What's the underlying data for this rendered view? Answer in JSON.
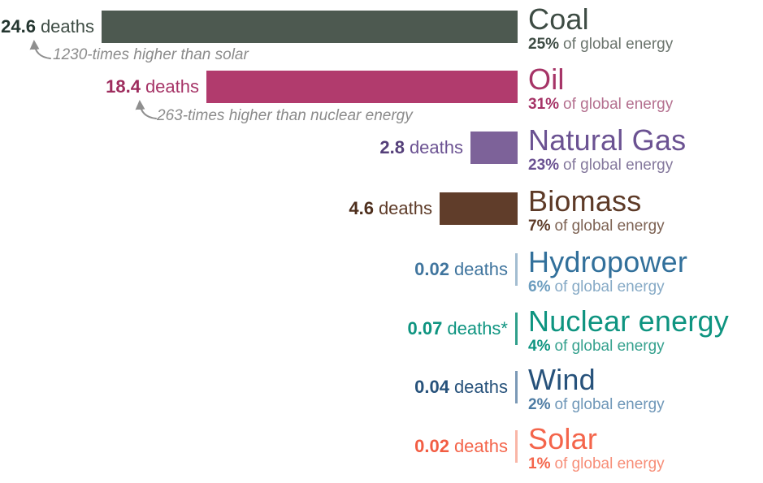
{
  "chart_data": {
    "type": "bar",
    "orientation": "horizontal",
    "title": "",
    "value_unit": "deaths",
    "xlim": [
      0,
      24.6
    ],
    "grid": false,
    "legend": "none",
    "categories": [
      "Coal",
      "Oil",
      "Natural Gas",
      "Biomass",
      "Hydropower",
      "Nuclear energy",
      "Wind",
      "Solar"
    ],
    "values": [
      24.6,
      18.4,
      2.8,
      4.6,
      0.02,
      0.07,
      0.04,
      0.02
    ],
    "shares_of_global_energy": [
      "25%",
      "31%",
      "23%",
      "7%",
      "6%",
      "4%",
      "2%",
      "1%"
    ],
    "series": [
      {
        "label": "Coal",
        "deaths": 24.6,
        "deaths_display": "24.6",
        "deaths_word": "deaths",
        "share": "25%",
        "share_text": "of global energy",
        "annotation": "1230-times higher than solar",
        "colors": {
          "bar": "#4d5950",
          "value": "#243630",
          "word": "#3e4c44",
          "name": "#3e4c44",
          "share_num": "#3e4c44",
          "share_rest": "#6b746d"
        }
      },
      {
        "label": "Oil",
        "deaths": 18.4,
        "deaths_display": "18.4",
        "deaths_word": "deaths",
        "share": "31%",
        "share_text": "of global energy",
        "annotation": "263-times higher than nuclear energy",
        "colors": {
          "bar": "#b13b6d",
          "value": "#9e2d5e",
          "word": "#a63467",
          "name": "#a63467",
          "share_num": "#a63467",
          "share_rest": "#b4708f"
        }
      },
      {
        "label": "Natural Gas",
        "deaths": 2.8,
        "deaths_display": "2.8",
        "deaths_word": "deaths",
        "share": "23%",
        "share_text": "of global energy",
        "annotation": "",
        "colors": {
          "bar": "#7d6299",
          "value": "#55407a",
          "word": "#6b5292",
          "name": "#6b5292",
          "share_num": "#6b5292",
          "share_rest": "#84789c"
        }
      },
      {
        "label": "Biomass",
        "deaths": 4.6,
        "deaths_display": "4.6",
        "deaths_word": "deaths",
        "share": "7%",
        "share_text": "of global energy",
        "annotation": "",
        "colors": {
          "bar": "#603d2a",
          "value": "#4e2f1d",
          "word": "#5d3a27",
          "name": "#5d3a27",
          "share_num": "#5d3a27",
          "share_rest": "#7d6253"
        }
      },
      {
        "label": "Hydropower",
        "deaths": 0.02,
        "deaths_display": "0.02",
        "deaths_word": "deaths",
        "share": "6%",
        "share_text": "of global energy",
        "annotation": "",
        "colors": {
          "bar": "#a3bdd1",
          "value": "#40759e",
          "word": "#40759e",
          "name": "#32709b",
          "share_num": "#6b9cbe",
          "share_rest": "#86aac6"
        }
      },
      {
        "label": "Nuclear energy",
        "deaths": 0.07,
        "deaths_display": "0.07",
        "deaths_word": "deaths*",
        "share": "4%",
        "share_text": "of global energy",
        "annotation": "",
        "colors": {
          "bar": "#2f9f8b",
          "value": "#0e9480",
          "word": "#0e9480",
          "name": "#0e9480",
          "share_num": "#0e9480",
          "share_rest": "#35a18e"
        }
      },
      {
        "label": "Wind",
        "deaths": 0.04,
        "deaths_display": "0.04",
        "deaths_word": "deaths",
        "share": "2%",
        "share_text": "of global energy",
        "annotation": "",
        "colors": {
          "bar": "#7b99b6",
          "value": "#27527b",
          "word": "#27527b",
          "name": "#27527b",
          "share_num": "#4d7ba3",
          "share_rest": "#6f97b8"
        }
      },
      {
        "label": "Solar",
        "deaths": 0.02,
        "deaths_display": "0.02",
        "deaths_word": "deaths",
        "share": "1%",
        "share_text": "of global energy",
        "annotation": "",
        "colors": {
          "bar": "#f9b6a7",
          "value": "#f25d43",
          "word": "#f4654b",
          "name": "#f4654b",
          "share_num": "#f4654b",
          "share_rest": "#f78e78"
        }
      }
    ]
  }
}
